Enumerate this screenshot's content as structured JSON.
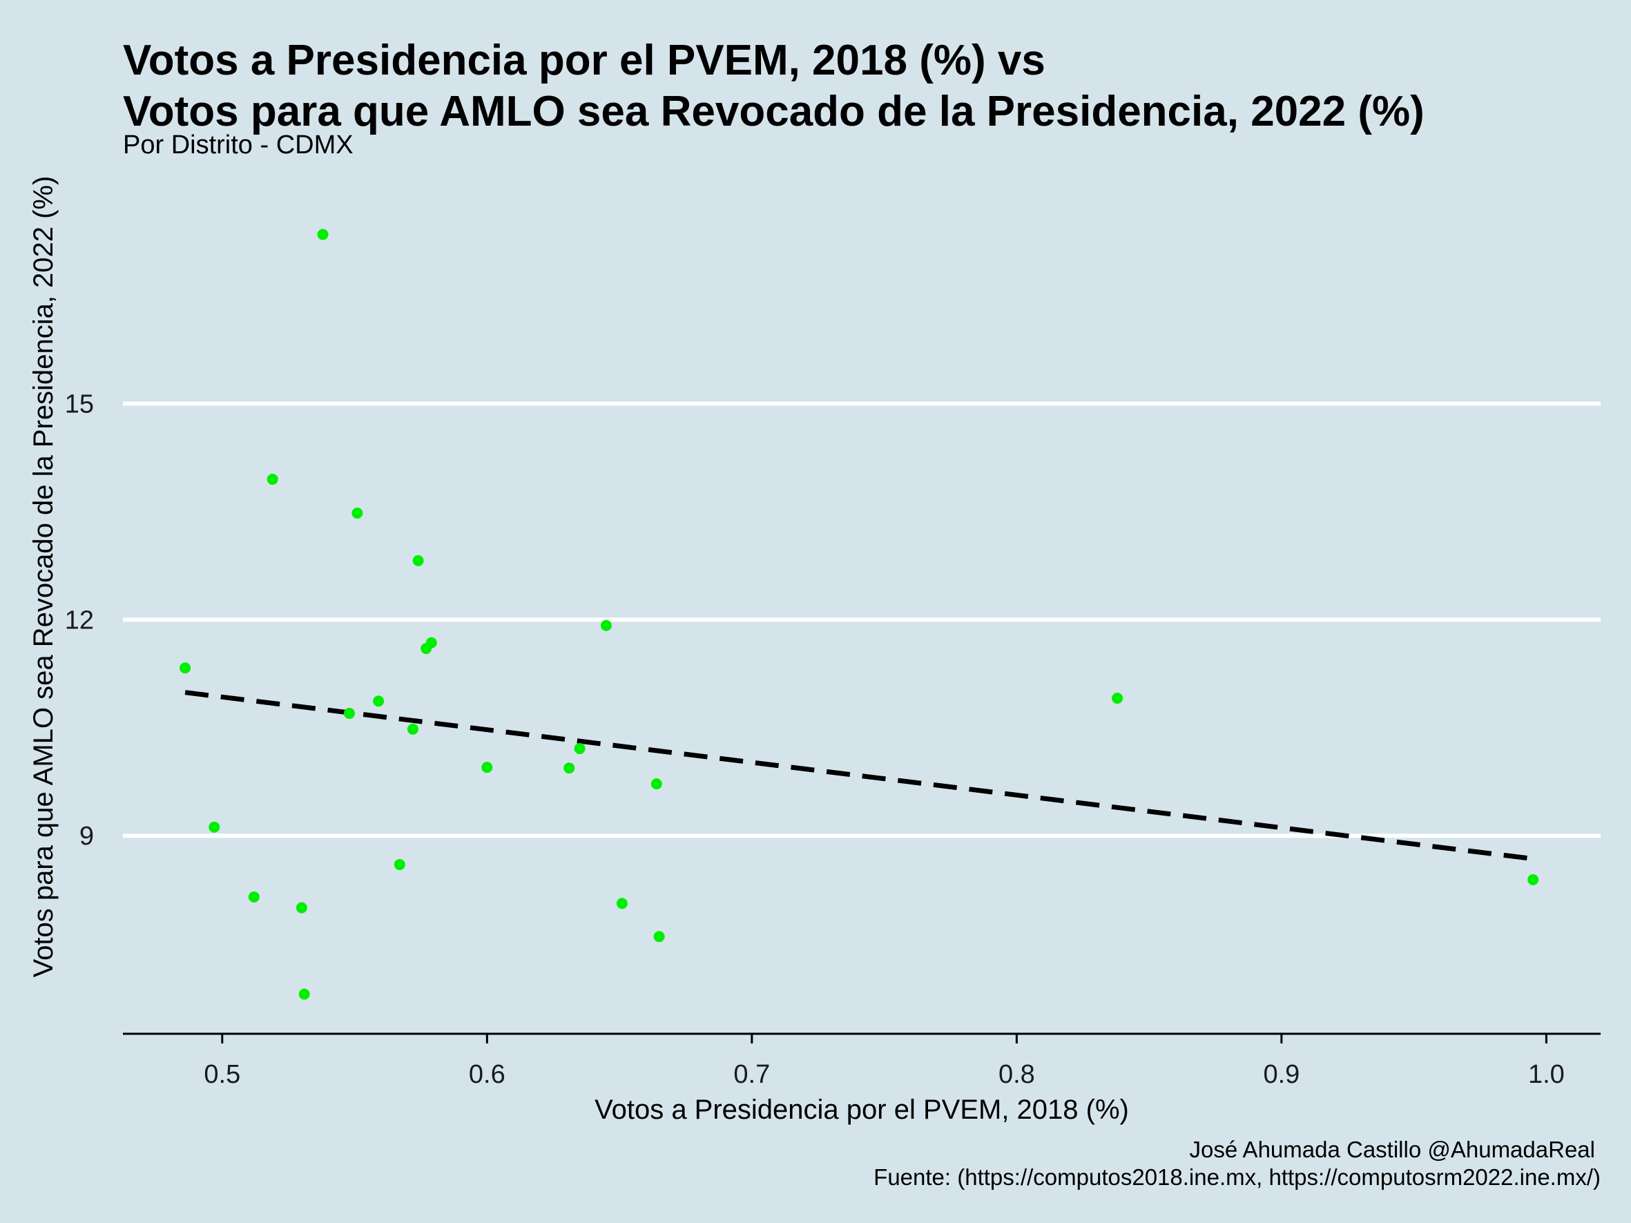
{
  "chart_data": {
    "type": "scatter",
    "title_line1": "Votos a Presidencia por el PVEM, 2018 (%) vs",
    "title_line2": "Votos para que AMLO sea Revocado de la Presidencia, 2022 (%)",
    "subtitle": "Por Distrito - CDMX",
    "xlabel": "Votos a Presidencia por el PVEM, 2018 (%)",
    "ylabel": "Votos para que AMLO sea Revocado de la Presidencia, 2022 (%)",
    "caption_line1": "José Ahumada Castillo @AhumadaReal",
    "caption_line2": "Fuente: (https://computos2018.ine.mx, https://computosrm2022.ine.mx/)",
    "xlim": [
      0.4625,
      1.0205
    ],
    "ylim": [
      6.25,
      18.4
    ],
    "x_ticks": [
      {
        "value": 0.5,
        "label": "0.5"
      },
      {
        "value": 0.6,
        "label": "0.6"
      },
      {
        "value": 0.7,
        "label": "0.7"
      },
      {
        "value": 0.8,
        "label": "0.8"
      },
      {
        "value": 0.9,
        "label": "0.9"
      },
      {
        "value": 1.0,
        "label": "1.0"
      }
    ],
    "y_ticks": [
      {
        "value": 9,
        "label": "9"
      },
      {
        "value": 12,
        "label": "12"
      },
      {
        "value": 15,
        "label": "15"
      }
    ],
    "grid": {
      "horizontal_major": true,
      "vertical": false
    },
    "point_color": "#00ee00",
    "trend_color": "#000000",
    "points": [
      {
        "x": 0.538,
        "y": 17.35
      },
      {
        "x": 0.519,
        "y": 13.95
      },
      {
        "x": 0.551,
        "y": 13.48
      },
      {
        "x": 0.574,
        "y": 12.82
      },
      {
        "x": 0.645,
        "y": 11.92
      },
      {
        "x": 0.579,
        "y": 11.68
      },
      {
        "x": 0.577,
        "y": 11.6
      },
      {
        "x": 0.486,
        "y": 11.33
      },
      {
        "x": 0.838,
        "y": 10.91
      },
      {
        "x": 0.559,
        "y": 10.87
      },
      {
        "x": 0.548,
        "y": 10.7
      },
      {
        "x": 0.572,
        "y": 10.48
      },
      {
        "x": 0.635,
        "y": 10.21
      },
      {
        "x": 0.6,
        "y": 9.95
      },
      {
        "x": 0.631,
        "y": 9.94
      },
      {
        "x": 0.664,
        "y": 9.72
      },
      {
        "x": 0.497,
        "y": 9.12
      },
      {
        "x": 0.567,
        "y": 8.6
      },
      {
        "x": 0.995,
        "y": 8.39
      },
      {
        "x": 0.512,
        "y": 8.15
      },
      {
        "x": 0.651,
        "y": 8.06
      },
      {
        "x": 0.53,
        "y": 8.0
      },
      {
        "x": 0.665,
        "y": 7.6
      },
      {
        "x": 0.531,
        "y": 6.8
      }
    ],
    "trend_line": {
      "x": [
        0.486,
        0.995
      ],
      "y": [
        10.99,
        8.68
      ],
      "style": "dashed"
    }
  }
}
